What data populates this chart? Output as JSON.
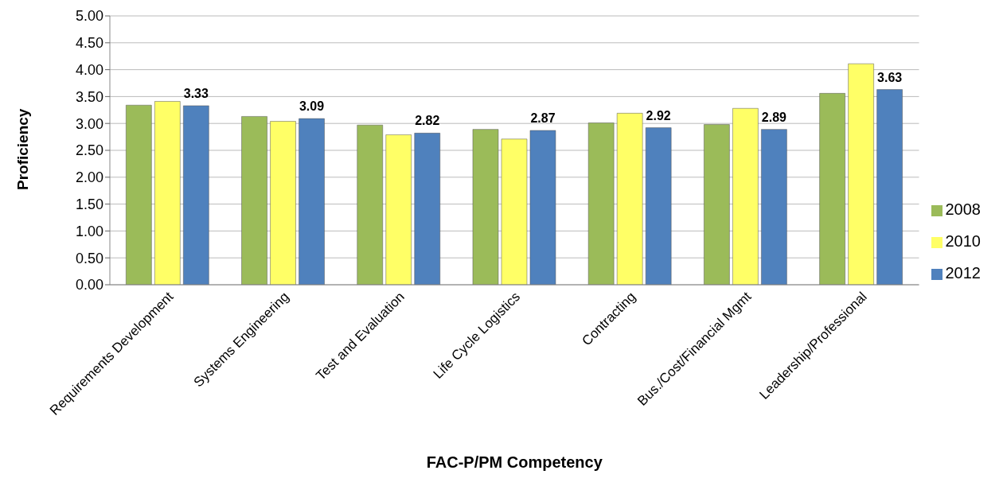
{
  "chart_data": {
    "type": "bar",
    "xlabel": "FAC-P/PM Competency",
    "ylabel": "Proficiency",
    "categories": [
      "Requirements Development",
      "Systems Engineering",
      "Test and Evaluation",
      "Life Cycle Logistics",
      "Contracting",
      "Bus./Cost/Financial Mgmt",
      "Leadership/Professional"
    ],
    "series": [
      {
        "name": "2008",
        "color": "#9bbb59",
        "values": [
          3.34,
          3.13,
          2.97,
          2.89,
          3.01,
          2.98,
          3.56
        ]
      },
      {
        "name": "2010",
        "color": "#ffff66",
        "values": [
          3.41,
          3.04,
          2.79,
          2.71,
          3.19,
          3.28,
          4.11
        ]
      },
      {
        "name": "2012",
        "color": "#4f81bd",
        "values": [
          3.33,
          3.09,
          2.82,
          2.87,
          2.92,
          2.89,
          3.63
        ],
        "value_labels": [
          "3.33",
          "3.09",
          "2.82",
          "2.87",
          "2.92",
          "2.89",
          "3.63"
        ]
      }
    ],
    "ylim": [
      0,
      5
    ],
    "yticks": [
      {
        "value": 0,
        "label": "0.00"
      },
      {
        "value": 0.5,
        "label": "0.50"
      },
      {
        "value": 1,
        "label": "1.00"
      },
      {
        "value": 1.5,
        "label": "1.50"
      },
      {
        "value": 2,
        "label": "2.00"
      },
      {
        "value": 2.5,
        "label": "2.50"
      },
      {
        "value": 3,
        "label": "3.00"
      },
      {
        "value": 3.5,
        "label": "3.50"
      },
      {
        "value": 4,
        "label": "4.00"
      },
      {
        "value": 4.5,
        "label": "4.50"
      },
      {
        "value": 5,
        "label": "5.00"
      }
    ],
    "grid": "y",
    "legend": "right"
  }
}
